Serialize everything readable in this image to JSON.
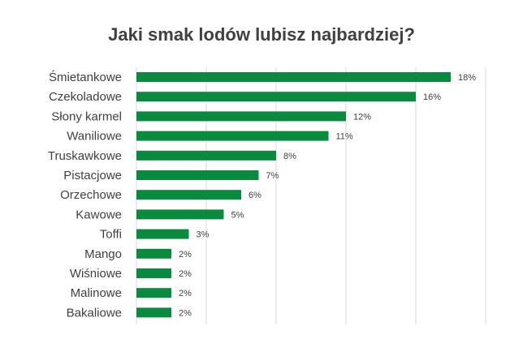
{
  "chart_data": {
    "type": "bar",
    "orientation": "horizontal",
    "title": "Jaki smak lodów lubisz najbardziej?",
    "categories": [
      "Śmietankowe",
      "Czekoladowe",
      "Słony karmel",
      "Waniliowe",
      "Truskawkowe",
      "Pistacjowe",
      "Orzechowe",
      "Kawowe",
      "Toffi",
      "Mango",
      "Wiśniowe",
      "Malinowe",
      "Bakaliowe"
    ],
    "values": [
      18,
      16,
      12,
      11,
      8,
      7,
      6,
      5,
      3,
      2,
      2,
      2,
      2
    ],
    "data_labels": [
      "18%",
      "16%",
      "12%",
      "11%",
      "8%",
      "7%",
      "6%",
      "5%",
      "3%",
      "2%",
      "2%",
      "2%",
      "2%"
    ],
    "unit": "%",
    "xlim": [
      0,
      20
    ],
    "grid": "vertical",
    "legend": "none",
    "colors": {
      "bar": "#0a8a3e",
      "gridline": "#d9d9d9",
      "category_text": "#404040",
      "label_text": "#404040",
      "title_text": "#404040"
    }
  }
}
